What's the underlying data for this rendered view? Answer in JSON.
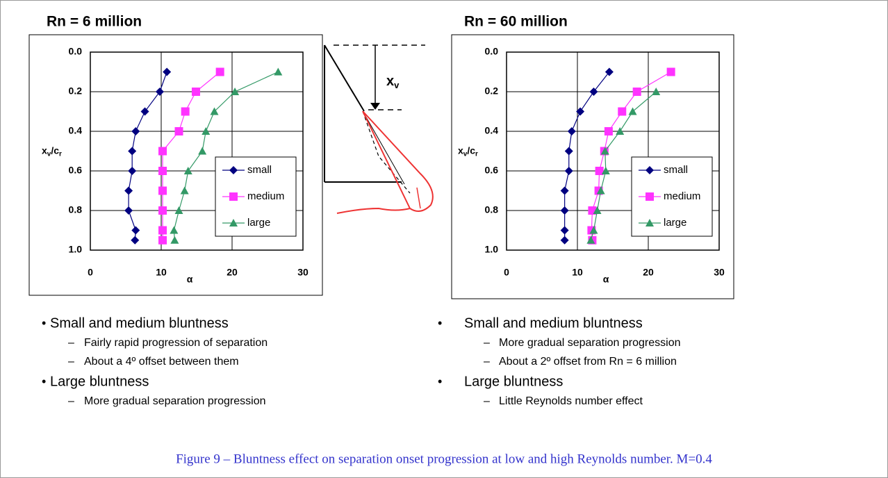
{
  "chart_data": [
    {
      "type": "line",
      "title": "Rn = 6 million",
      "xlabel": "α",
      "ylabel": [
        "x",
        "v",
        "/c",
        "r"
      ],
      "xlim": [
        0,
        30
      ],
      "xticks": [
        0,
        10,
        20,
        30
      ],
      "ylim": [
        0,
        1
      ],
      "y_inverted": true,
      "yticks": [
        {
          "value": 0,
          "label": "0.0"
        },
        0.2,
        0.4,
        0.6,
        0.8,
        {
          "value": 1,
          "label": "1.0"
        }
      ],
      "grid": true,
      "legend": "lower right",
      "series": [
        {
          "name": "small",
          "color": "#000080",
          "marker": "diamond",
          "x": [
            10.8,
            9.8,
            7.7,
            6.4,
            5.9,
            5.9,
            5.4,
            5.4,
            6.4,
            6.3
          ],
          "values": [
            0.1,
            0.2,
            0.3,
            0.4,
            0.5,
            0.6,
            0.7,
            0.8,
            0.9,
            0.95
          ]
        },
        {
          "name": "medium",
          "color": "#ff33ff",
          "marker": "square",
          "x": [
            18.3,
            14.9,
            13.4,
            12.5,
            10.2,
            10.2,
            10.2,
            10.2,
            10.2,
            10.2
          ],
          "values": [
            0.1,
            0.2,
            0.3,
            0.4,
            0.5,
            0.6,
            0.7,
            0.8,
            0.9,
            0.95
          ]
        },
        {
          "name": "large",
          "color": "#339966",
          "marker": "triangle",
          "x": [
            26.5,
            20.4,
            17.5,
            16.3,
            15.8,
            13.8,
            13.3,
            12.5,
            11.8,
            11.9
          ],
          "values": [
            0.1,
            0.2,
            0.3,
            0.4,
            0.5,
            0.6,
            0.7,
            0.8,
            0.9,
            0.95
          ]
        }
      ]
    },
    {
      "type": "line",
      "title": "Rn = 60 million",
      "xlabel": "α",
      "ylabel": [
        "x",
        "v",
        "/c",
        "r"
      ],
      "xlim": [
        0,
        30
      ],
      "xticks": [
        0,
        10,
        20,
        30
      ],
      "ylim": [
        0,
        1
      ],
      "y_inverted": true,
      "yticks": [
        {
          "value": 0,
          "label": "0.0"
        },
        0.2,
        0.4,
        0.6,
        0.8,
        {
          "value": 1,
          "label": "1.0"
        }
      ],
      "grid": true,
      "legend": "lower right",
      "series": [
        {
          "name": "small",
          "color": "#000080",
          "marker": "diamond",
          "x": [
            14.5,
            12.3,
            10.4,
            9.2,
            8.8,
            8.8,
            8.2,
            8.2,
            8.2,
            8.2
          ],
          "values": [
            0.1,
            0.2,
            0.3,
            0.4,
            0.5,
            0.6,
            0.7,
            0.8,
            0.9,
            0.95
          ]
        },
        {
          "name": "medium",
          "color": "#ff33ff",
          "marker": "square",
          "x": [
            23.2,
            18.4,
            16.3,
            14.4,
            13.8,
            13.1,
            13.0,
            12.1,
            12.0,
            12.1
          ],
          "values": [
            0.1,
            0.2,
            0.3,
            0.4,
            0.5,
            0.6,
            0.7,
            0.8,
            0.9,
            0.95
          ]
        },
        {
          "name": "large",
          "color": "#339966",
          "marker": "triangle",
          "x": [
            21.1,
            17.8,
            16.0,
            13.9,
            14.0,
            13.3,
            12.8,
            12.3,
            11.9
          ],
          "values": [
            0.2,
            0.3,
            0.4,
            0.5,
            0.6,
            0.7,
            0.8,
            0.9,
            0.95
          ]
        }
      ]
    }
  ],
  "diagram": {
    "label": [
      "x",
      "v"
    ]
  },
  "bullets": [
    [
      {
        "text": "Small and medium bluntness",
        "sub": [
          "Fairly rapid progression of separation",
          "About a 4º offset between them"
        ]
      },
      {
        "text": "Large bluntness",
        "sub": [
          "More gradual separation progression"
        ]
      }
    ],
    [
      {
        "text": "Small and medium bluntness",
        "sub": [
          "More gradual separation progression",
          "About a 2º offset from Rn = 6 million"
        ]
      },
      {
        "text": "Large bluntness",
        "sub": [
          "Little Reynolds number effect"
        ]
      }
    ]
  ],
  "caption": "Figure 9 – Bluntness effect on separation onset progression at low and high Reynolds number.  M=0.4"
}
